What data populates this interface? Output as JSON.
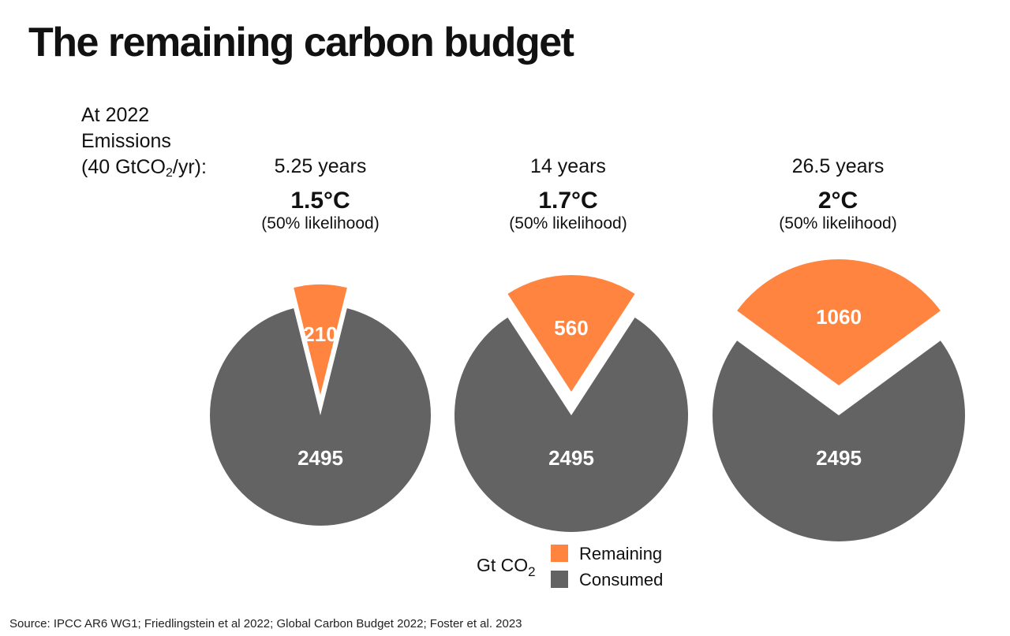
{
  "title": "The remaining carbon budget",
  "row_label": {
    "line1": "At 2022",
    "line2": "Emissions",
    "line3_pre": "(40 GtCO",
    "line3_sub": "2",
    "line3_post": "/yr):"
  },
  "colors": {
    "remaining": "#FF8440",
    "consumed": "#636363"
  },
  "chart_data": {
    "type": "pie",
    "unit": "Gt CO2",
    "categories": [
      "Remaining",
      "Consumed"
    ],
    "pies": [
      {
        "years": "5.25 years",
        "temperature": "1.5°C",
        "likelihood": "(50% likelihood)",
        "remaining": 210,
        "consumed": 2495,
        "remaining_label": "210",
        "consumed_label": "2495"
      },
      {
        "years": "14 years",
        "temperature": "1.7°C",
        "likelihood": "(50% likelihood)",
        "remaining": 560,
        "consumed": 2495,
        "remaining_label": "560",
        "consumed_label": "2495"
      },
      {
        "years": "26.5 years",
        "temperature": "2°C",
        "likelihood": "(50% likelihood)",
        "remaining": 1060,
        "consumed": 2495,
        "remaining_label": "1060",
        "consumed_label": "2495"
      }
    ]
  },
  "legend": {
    "unit_pre": "Gt CO",
    "unit_sub": "2",
    "remaining": "Remaining",
    "consumed": "Consumed"
  },
  "source": "Source: IPCC AR6 WG1; Friedlingstein et al 2022; Global Carbon Budget 2022; Foster et al. 2023"
}
